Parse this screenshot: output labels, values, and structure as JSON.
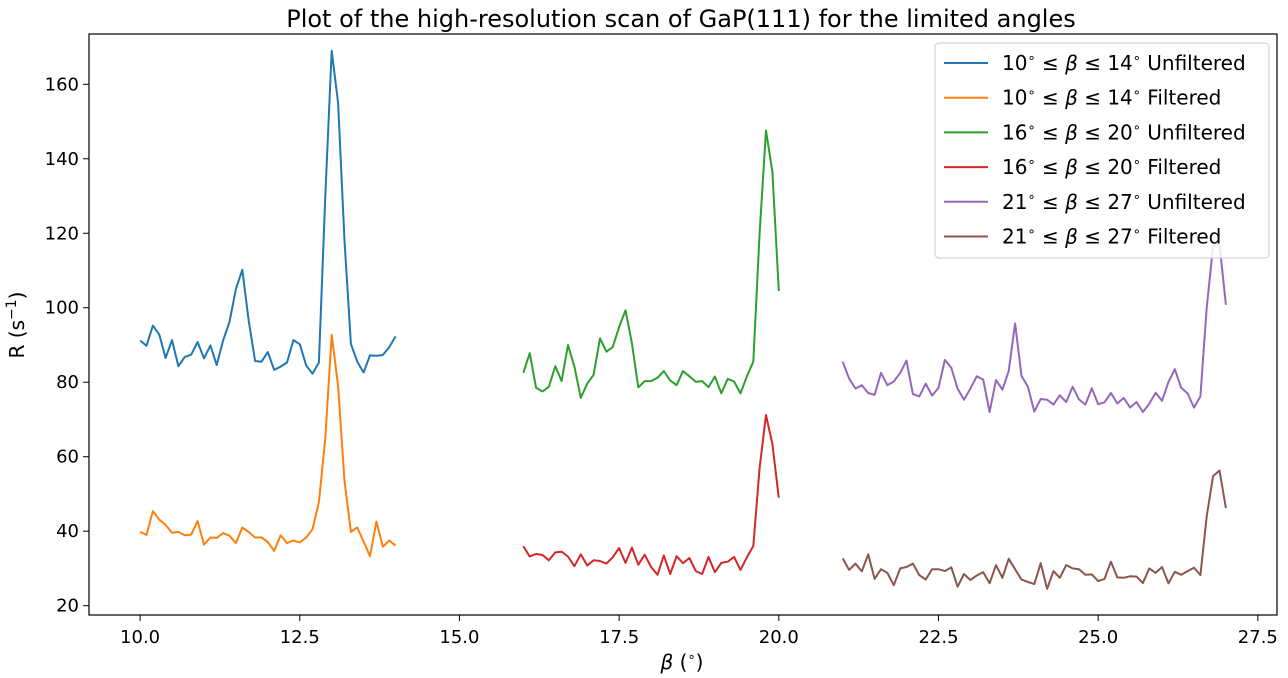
{
  "chart_data": {
    "type": "line",
    "title": "Plot of the high-resolution scan of GaP(111) for the limited angles",
    "xlabel_parts": [
      "β",
      " (",
      "∘",
      ")"
    ],
    "ylabel_parts": [
      "R (s",
      "−1",
      ")"
    ],
    "xlim": [
      9.2,
      27.8
    ],
    "ylim": [
      17.5,
      173.5
    ],
    "xticks": [
      10.0,
      12.5,
      15.0,
      17.5,
      20.0,
      22.5,
      25.0,
      27.5
    ],
    "xtick_labels": [
      "10.0",
      "12.5",
      "15.0",
      "17.5",
      "20.0",
      "22.5",
      "25.0",
      "27.5"
    ],
    "yticks": [
      20,
      40,
      60,
      80,
      100,
      120,
      140,
      160
    ],
    "ytick_labels": [
      "20",
      "40",
      "60",
      "80",
      "100",
      "120",
      "140",
      "160"
    ],
    "grid": false,
    "legend_position": "top-right",
    "series": [
      {
        "name_parts": [
          "10",
          "∘",
          " ≤ ",
          "β",
          " ≤ 14",
          "∘",
          " Unfiltered"
        ],
        "color": "#1f77b4",
        "x_start": 10.0,
        "x_step": 0.1,
        "y": [
          91.2,
          89.8,
          95.2,
          92.8,
          86.5,
          91.3,
          84.3,
          86.8,
          87.4,
          90.8,
          86.4,
          89.9,
          84.6,
          91.2,
          96.2,
          105.0,
          110.2,
          96.5,
          85.7,
          85.5,
          88.1,
          83.3,
          84.2,
          85.3,
          91.3,
          90.2,
          84.5,
          82.3,
          85.3,
          130.0,
          169.0,
          155.0,
          118.0,
          90.3,
          85.5,
          82.6,
          87.2,
          87.1,
          87.3,
          89.4,
          92.3
        ]
      },
      {
        "name_parts": [
          "10",
          "∘",
          " ≤ ",
          "β",
          " ≤ 14",
          "∘",
          " Filtered"
        ],
        "color": "#ff7f0e",
        "x_start": 10.0,
        "x_step": 0.1,
        "y": [
          39.8,
          39.0,
          45.4,
          43.1,
          41.7,
          39.6,
          39.8,
          38.9,
          39.1,
          42.7,
          36.4,
          38.3,
          38.2,
          39.5,
          38.8,
          36.8,
          41.0,
          39.8,
          38.3,
          38.3,
          37.1,
          34.7,
          38.9,
          36.8,
          37.5,
          37.0,
          38.3,
          40.5,
          47.8,
          65.0,
          92.7,
          79.0,
          53.5,
          39.8,
          41.0,
          37.2,
          33.3,
          42.6,
          35.8,
          37.5,
          36.1
        ]
      },
      {
        "name_parts": [
          "16",
          "∘",
          " ≤ ",
          "β",
          " ≤ 20",
          "∘",
          " Unfiltered"
        ],
        "color": "#2ca02c",
        "x_start": 16.0,
        "x_step": 0.1,
        "y": [
          82.5,
          87.8,
          78.5,
          77.5,
          78.8,
          84.3,
          80.3,
          90.0,
          84.2,
          75.8,
          79.6,
          82.0,
          91.8,
          88.2,
          89.4,
          94.8,
          99.3,
          90.5,
          78.6,
          80.3,
          80.3,
          81.2,
          83.0,
          80.5,
          79.2,
          83.0,
          81.6,
          80.1,
          80.3,
          78.7,
          81.5,
          77.0,
          80.9,
          80.2,
          77.0,
          81.6,
          85.5,
          120.0,
          147.6,
          136.5,
          104.5
        ]
      },
      {
        "name_parts": [
          "16",
          "∘",
          " ≤ ",
          "β",
          " ≤ 20",
          "∘",
          " Filtered"
        ],
        "color": "#d62728",
        "x_start": 16.0,
        "x_step": 0.1,
        "y": [
          36.0,
          33.2,
          33.9,
          33.6,
          32.2,
          34.3,
          34.5,
          33.2,
          30.6,
          33.8,
          30.8,
          32.2,
          32.0,
          31.3,
          33.0,
          35.5,
          31.5,
          35.6,
          31.0,
          33.7,
          30.4,
          28.3,
          33.5,
          28.5,
          33.3,
          31.4,
          32.8,
          29.3,
          28.5,
          33.1,
          29.0,
          31.5,
          31.8,
          33.1,
          29.6,
          33.0,
          36.0,
          57.0,
          71.2,
          63.4,
          49.0
        ]
      },
      {
        "name_parts": [
          "21",
          "∘",
          " ≤ ",
          "β",
          " ≤ 27",
          "∘",
          " Unfiltered"
        ],
        "color": "#9467bd",
        "x_start": 21.0,
        "x_step": 0.1,
        "y": [
          85.5,
          81.0,
          78.3,
          79.2,
          77.1,
          76.6,
          82.5,
          79.2,
          80.2,
          82.5,
          85.8,
          76.8,
          76.2,
          79.6,
          76.4,
          78.5,
          86.0,
          83.9,
          78.3,
          75.3,
          78.3,
          81.6,
          80.7,
          72.0,
          80.6,
          78.0,
          83.0,
          95.8,
          81.7,
          78.8,
          72.1,
          75.5,
          75.3,
          74.0,
          76.5,
          74.7,
          78.8,
          75.4,
          74.0,
          78.4,
          74.1,
          74.6,
          77.1,
          74.3,
          75.8,
          73.2,
          74.7,
          72.0,
          74.2,
          77.2,
          75.0,
          80.0,
          83.5,
          78.5,
          77.0,
          73.2,
          76.2,
          100.0,
          116.5,
          117.0,
          100.8
        ]
      },
      {
        "name_parts": [
          "21",
          "∘",
          " ≤ ",
          "β",
          " ≤ 27",
          "∘",
          " Filtered"
        ],
        "color": "#8c564b",
        "x_start": 21.0,
        "x_step": 0.1,
        "y": [
          32.7,
          29.6,
          31.3,
          29.2,
          33.8,
          27.2,
          29.8,
          28.8,
          25.5,
          30.0,
          30.4,
          31.3,
          28.2,
          27.0,
          29.8,
          29.8,
          29.3,
          30.3,
          25.1,
          28.5,
          26.9,
          28.1,
          29.0,
          26.0,
          30.9,
          27.5,
          32.6,
          29.8,
          27.0,
          26.4,
          25.8,
          31.4,
          24.5,
          29.3,
          27.5,
          30.9,
          30.0,
          29.8,
          28.3,
          28.4,
          26.6,
          27.2,
          31.8,
          27.6,
          27.5,
          27.9,
          27.8,
          26.1,
          30.0,
          28.8,
          30.4,
          26.0,
          29.1,
          28.3,
          29.3,
          30.2,
          28.2,
          44.0,
          54.8,
          56.3,
          46.2
        ]
      }
    ]
  }
}
